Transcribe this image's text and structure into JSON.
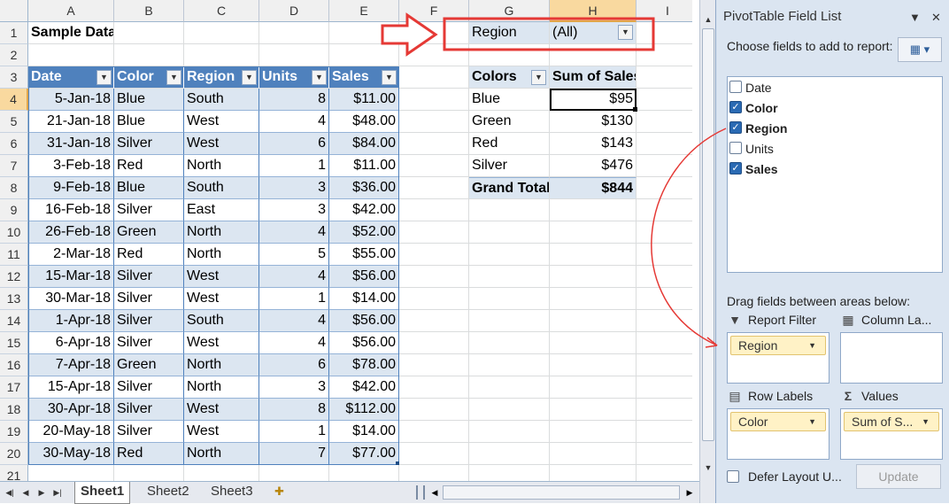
{
  "grid": {
    "columns": [
      "A",
      "B",
      "C",
      "D",
      "E",
      "F",
      "G",
      "H",
      "I"
    ],
    "selected_column": "H",
    "rows": [
      1,
      2,
      3,
      4,
      5,
      6,
      7,
      8,
      9,
      10,
      11,
      12,
      13,
      14,
      15,
      16,
      17,
      18,
      19,
      20,
      21
    ],
    "selected_row": 4
  },
  "sample": {
    "title": "Sample Data",
    "headers": [
      "Date",
      "Color",
      "Region",
      "Units",
      "Sales"
    ],
    "rows": [
      [
        "5-Jan-18",
        "Blue",
        "South",
        "8",
        "$11.00"
      ],
      [
        "21-Jan-18",
        "Blue",
        "West",
        "4",
        "$48.00"
      ],
      [
        "31-Jan-18",
        "Silver",
        "West",
        "6",
        "$84.00"
      ],
      [
        "3-Feb-18",
        "Red",
        "North",
        "1",
        "$11.00"
      ],
      [
        "9-Feb-18",
        "Blue",
        "South",
        "3",
        "$36.00"
      ],
      [
        "16-Feb-18",
        "Silver",
        "East",
        "3",
        "$42.00"
      ],
      [
        "26-Feb-18",
        "Green",
        "North",
        "4",
        "$52.00"
      ],
      [
        "2-Mar-18",
        "Red",
        "North",
        "5",
        "$55.00"
      ],
      [
        "15-Mar-18",
        "Silver",
        "West",
        "4",
        "$56.00"
      ],
      [
        "30-Mar-18",
        "Silver",
        "West",
        "1",
        "$14.00"
      ],
      [
        "1-Apr-18",
        "Silver",
        "South",
        "4",
        "$56.00"
      ],
      [
        "6-Apr-18",
        "Silver",
        "West",
        "4",
        "$56.00"
      ],
      [
        "7-Apr-18",
        "Green",
        "North",
        "6",
        "$78.00"
      ],
      [
        "15-Apr-18",
        "Silver",
        "North",
        "3",
        "$42.00"
      ],
      [
        "30-Apr-18",
        "Silver",
        "West",
        "8",
        "$112.00"
      ],
      [
        "20-May-18",
        "Silver",
        "West",
        "1",
        "$14.00"
      ],
      [
        "30-May-18",
        "Red",
        "North",
        "7",
        "$77.00"
      ]
    ]
  },
  "pivot": {
    "filter_label": "Region",
    "filter_value": "(All)",
    "row_header": "Colors",
    "value_header": "Sum of Sales",
    "rows": [
      [
        "Blue",
        "$95"
      ],
      [
        "Green",
        "$130"
      ],
      [
        "Red",
        "$143"
      ],
      [
        "Silver",
        "$476"
      ]
    ],
    "total_label": "Grand Total",
    "total_value": "$844"
  },
  "sheets": {
    "tabs": [
      "Sheet1",
      "Sheet2",
      "Sheet3"
    ],
    "active": "Sheet1"
  },
  "field_list": {
    "title": "PivotTable Field List",
    "choose_label": "Choose fields to add to report:",
    "fields": [
      {
        "name": "Date",
        "checked": false
      },
      {
        "name": "Color",
        "checked": true
      },
      {
        "name": "Region",
        "checked": true
      },
      {
        "name": "Units",
        "checked": false
      },
      {
        "name": "Sales",
        "checked": true
      }
    ],
    "drag_label": "Drag fields between areas below:",
    "areas": {
      "report_filter": {
        "label": "Report Filter",
        "chip": "Region"
      },
      "column_labels": {
        "label": "Column La..."
      },
      "row_labels": {
        "label": "Row Labels",
        "chip": "Color"
      },
      "values": {
        "label": "Values",
        "chip": "Sum of S..."
      }
    },
    "defer_label": "Defer Layout U...",
    "update_label": "Update"
  },
  "colors": {
    "table_header": "#4f81bd",
    "band": "#dce6f1",
    "annotation": "#e53935",
    "chip": "#fff2c6"
  }
}
